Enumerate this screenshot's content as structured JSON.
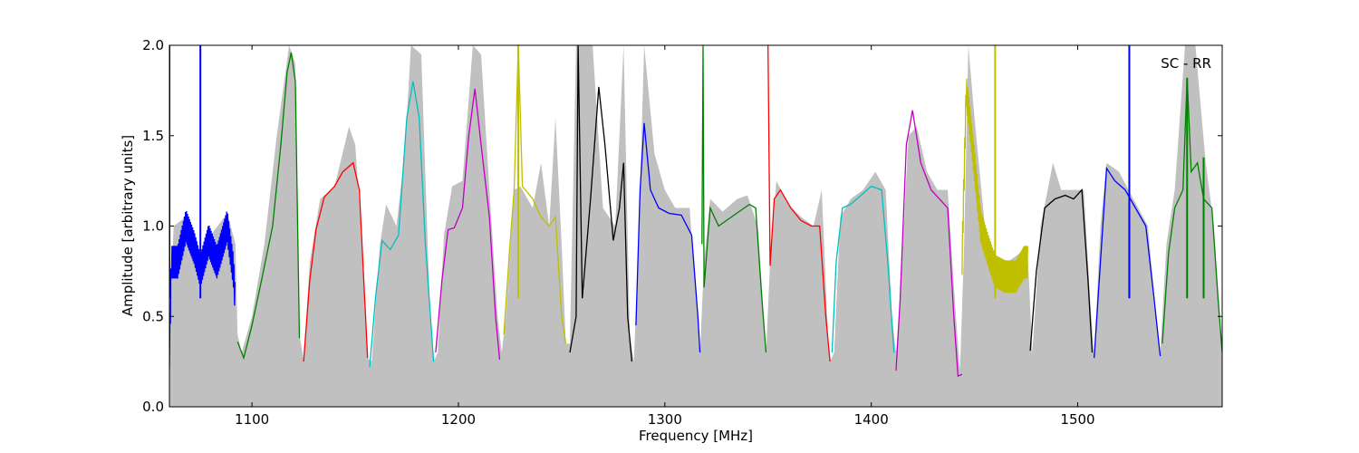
{
  "chart_data": {
    "type": "line",
    "xlabel": "Frequency [MHz]",
    "ylabel": "Amplitude [arbitrary units]",
    "annotation": "SC - RR",
    "annotation_position": "top-right",
    "xlim": [
      1060,
      1570
    ],
    "ylim": [
      0.0,
      2.0
    ],
    "xticks": [
      1100,
      1200,
      1300,
      1400,
      1500
    ],
    "xtick_labels": [
      "1100",
      "1200",
      "1300",
      "1400",
      "1500"
    ],
    "yticks": [
      0.0,
      0.5,
      1.0,
      1.5,
      2.0
    ],
    "ytick_labels": [
      "0.0",
      "0.5",
      "1.0",
      "1.5",
      "2.0"
    ],
    "grid": false,
    "envelope": {
      "color": "#c0c0c0",
      "description_free": true,
      "points": [
        [
          1060,
          0.3
        ],
        [
          1062,
          1.0
        ],
        [
          1068,
          1.05
        ],
        [
          1075,
          0.85
        ],
        [
          1080,
          0.95
        ],
        [
          1088,
          1.07
        ],
        [
          1092,
          0.9
        ],
        [
          1093,
          0.4
        ],
        [
          1095,
          0.3
        ],
        [
          1100,
          0.5
        ],
        [
          1106,
          0.9
        ],
        [
          1112,
          1.5
        ],
        [
          1118,
          2.0
        ],
        [
          1121,
          1.9
        ],
        [
          1123,
          0.4
        ],
        [
          1125,
          0.26
        ],
        [
          1128,
          0.8
        ],
        [
          1133,
          1.15
        ],
        [
          1140,
          1.22
        ],
        [
          1147,
          1.55
        ],
        [
          1150,
          1.45
        ],
        [
          1154,
          0.8
        ],
        [
          1156,
          0.27
        ],
        [
          1158,
          0.25
        ],
        [
          1162,
          0.9
        ],
        [
          1165,
          1.12
        ],
        [
          1170,
          1.0
        ],
        [
          1174,
          1.4
        ],
        [
          1177,
          2.0
        ],
        [
          1182,
          1.95
        ],
        [
          1186,
          0.6
        ],
        [
          1188,
          0.25
        ],
        [
          1190,
          0.3
        ],
        [
          1193,
          0.95
        ],
        [
          1197,
          1.22
        ],
        [
          1202,
          1.25
        ],
        [
          1207,
          2.0
        ],
        [
          1211,
          1.95
        ],
        [
          1215,
          1.2
        ],
        [
          1219,
          0.5
        ],
        [
          1221,
          0.3
        ],
        [
          1223,
          0.5
        ],
        [
          1227,
          1.2
        ],
        [
          1230,
          1.22
        ],
        [
          1236,
          1.1
        ],
        [
          1240,
          1.35
        ],
        [
          1244,
          1.0
        ],
        [
          1247,
          1.6
        ],
        [
          1250,
          0.9
        ],
        [
          1252,
          0.35
        ],
        [
          1254,
          0.35
        ],
        [
          1257,
          2.0
        ],
        [
          1261,
          2.0
        ],
        [
          1265,
          2.0
        ],
        [
          1270,
          1.1
        ],
        [
          1276,
          1.0
        ],
        [
          1280,
          2.0
        ],
        [
          1283,
          0.4
        ],
        [
          1285,
          0.25
        ],
        [
          1287,
          0.8
        ],
        [
          1290,
          2.0
        ],
        [
          1295,
          1.4
        ],
        [
          1300,
          1.2
        ],
        [
          1305,
          1.1
        ],
        [
          1312,
          1.1
        ],
        [
          1317,
          0.3
        ],
        [
          1319,
          0.8
        ],
        [
          1322,
          1.15
        ],
        [
          1328,
          1.08
        ],
        [
          1335,
          1.15
        ],
        [
          1340,
          1.17
        ],
        [
          1345,
          1.0
        ],
        [
          1349,
          0.3
        ],
        [
          1351,
          0.8
        ],
        [
          1354,
          1.25
        ],
        [
          1360,
          1.12
        ],
        [
          1366,
          1.05
        ],
        [
          1372,
          1.0
        ],
        [
          1376,
          1.2
        ],
        [
          1379,
          0.4
        ],
        [
          1380,
          0.25
        ],
        [
          1382,
          0.3
        ],
        [
          1385,
          1.05
        ],
        [
          1390,
          1.15
        ],
        [
          1396,
          1.2
        ],
        [
          1402,
          1.3
        ],
        [
          1407,
          1.2
        ],
        [
          1410,
          0.5
        ],
        [
          1412,
          0.3
        ],
        [
          1414,
          0.6
        ],
        [
          1418,
          1.5
        ],
        [
          1422,
          1.55
        ],
        [
          1427,
          1.3
        ],
        [
          1432,
          1.2
        ],
        [
          1437,
          1.2
        ],
        [
          1441,
          0.5
        ],
        [
          1443,
          0.2
        ],
        [
          1445,
          0.9
        ],
        [
          1447,
          2.0
        ],
        [
          1450,
          1.6
        ],
        [
          1455,
          1.0
        ],
        [
          1460,
          0.8
        ],
        [
          1466,
          0.8
        ],
        [
          1472,
          0.85
        ],
        [
          1476,
          0.8
        ],
        [
          1478,
          0.3
        ],
        [
          1482,
          1.0
        ],
        [
          1488,
          1.35
        ],
        [
          1492,
          1.2
        ],
        [
          1498,
          1.2
        ],
        [
          1503,
          1.2
        ],
        [
          1506,
          0.6
        ],
        [
          1508,
          0.28
        ],
        [
          1511,
          1.0
        ],
        [
          1514,
          1.35
        ],
        [
          1520,
          1.3
        ],
        [
          1527,
          1.15
        ],
        [
          1534,
          1.0
        ],
        [
          1538,
          0.5
        ],
        [
          1540,
          0.3
        ],
        [
          1543,
          0.9
        ],
        [
          1547,
          1.2
        ],
        [
          1552,
          2.0
        ],
        [
          1557,
          2.0
        ],
        [
          1562,
          1.35
        ],
        [
          1566,
          1.0
        ],
        [
          1570,
          0.3
        ]
      ]
    },
    "series": [
      {
        "color": "#0000ff",
        "noisy": true,
        "points": [
          [
            1060,
            0.3
          ],
          [
            1061,
            0.8
          ],
          [
            1064,
            0.8
          ],
          [
            1068,
            1.0
          ],
          [
            1072,
            0.88
          ],
          [
            1075,
            0.75
          ],
          [
            1079,
            0.92
          ],
          [
            1083,
            0.8
          ],
          [
            1088,
            1.0
          ],
          [
            1091,
            0.75
          ],
          [
            1092,
            0.55
          ]
        ],
        "spikes": [
          [
            1060,
            2.0
          ],
          [
            1075,
            2.0
          ]
        ]
      },
      {
        "color": "#008000",
        "points": [
          [
            1093,
            0.36
          ],
          [
            1096,
            0.27
          ],
          [
            1100,
            0.45
          ],
          [
            1105,
            0.72
          ],
          [
            1110,
            1.0
          ],
          [
            1114,
            1.45
          ],
          [
            1117,
            1.85
          ],
          [
            1119,
            1.96
          ],
          [
            1121,
            1.8
          ],
          [
            1123,
            0.38
          ]
        ]
      },
      {
        "color": "#ff0000",
        "points": [
          [
            1125,
            0.25
          ],
          [
            1128,
            0.7
          ],
          [
            1131,
            0.98
          ],
          [
            1135,
            1.16
          ],
          [
            1140,
            1.22
          ],
          [
            1144,
            1.3
          ],
          [
            1149,
            1.35
          ],
          [
            1152,
            1.2
          ],
          [
            1155,
            0.5
          ],
          [
            1156,
            0.27
          ]
        ]
      },
      {
        "color": "#00bfbf",
        "points": [
          [
            1157,
            0.22
          ],
          [
            1160,
            0.62
          ],
          [
            1163,
            0.92
          ],
          [
            1167,
            0.87
          ],
          [
            1171,
            0.95
          ],
          [
            1175,
            1.6
          ],
          [
            1178,
            1.8
          ],
          [
            1181,
            1.6
          ],
          [
            1184,
            0.9
          ],
          [
            1188,
            0.25
          ]
        ]
      },
      {
        "color": "#bf00bf",
        "points": [
          [
            1189,
            0.3
          ],
          [
            1192,
            0.7
          ],
          [
            1195,
            0.98
          ],
          [
            1198,
            0.99
          ],
          [
            1202,
            1.1
          ],
          [
            1205,
            1.5
          ],
          [
            1208,
            1.76
          ],
          [
            1211,
            1.45
          ],
          [
            1215,
            1.05
          ],
          [
            1218,
            0.5
          ],
          [
            1220,
            0.26
          ]
        ]
      },
      {
        "color": "#bfbf00",
        "points": [
          [
            1222,
            0.4
          ],
          [
            1225,
            0.9
          ],
          [
            1227,
            1.2
          ],
          [
            1229,
            2.0
          ],
          [
            1231,
            1.22
          ],
          [
            1236,
            1.15
          ],
          [
            1240,
            1.05
          ],
          [
            1244,
            1.0
          ],
          [
            1247,
            1.05
          ],
          [
            1250,
            0.5
          ],
          [
            1252,
            0.35
          ]
        ],
        "spikes": [
          [
            1229,
            2.0
          ]
        ]
      },
      {
        "color": "#000000",
        "points": [
          [
            1254,
            0.3
          ],
          [
            1257,
            0.5
          ],
          [
            1258,
            2.0
          ],
          [
            1260,
            0.6
          ],
          [
            1264,
            1.15
          ],
          [
            1268,
            1.77
          ],
          [
            1271,
            1.45
          ],
          [
            1275,
            0.92
          ],
          [
            1278,
            1.1
          ],
          [
            1280,
            1.35
          ],
          [
            1282,
            0.5
          ],
          [
            1284,
            0.25
          ]
        ]
      },
      {
        "color": "#0000ff",
        "points": [
          [
            1286,
            0.45
          ],
          [
            1288,
            1.2
          ],
          [
            1290,
            1.57
          ],
          [
            1293,
            1.2
          ],
          [
            1297,
            1.1
          ],
          [
            1302,
            1.07
          ],
          [
            1308,
            1.06
          ],
          [
            1313,
            0.95
          ],
          [
            1316,
            0.5
          ],
          [
            1317,
            0.3
          ]
        ],
        "spikes": []
      },
      {
        "color": "#008000",
        "points": [
          [
            1318,
            0.9
          ],
          [
            1318.5,
            2.0
          ],
          [
            1319,
            0.66
          ],
          [
            1322,
            1.1
          ],
          [
            1326,
            1.0
          ],
          [
            1331,
            1.04
          ],
          [
            1336,
            1.08
          ],
          [
            1341,
            1.12
          ],
          [
            1344,
            1.1
          ],
          [
            1347,
            0.6
          ],
          [
            1349,
            0.3
          ]
        ]
      },
      {
        "color": "#ff0000",
        "points": [
          [
            1350,
            2.0
          ],
          [
            1351,
            0.78
          ],
          [
            1353,
            1.15
          ],
          [
            1356,
            1.2
          ],
          [
            1361,
            1.1
          ],
          [
            1366,
            1.03
          ],
          [
            1371,
            1.0
          ],
          [
            1375,
            1.0
          ],
          [
            1378,
            0.5
          ],
          [
            1380,
            0.25
          ]
        ]
      },
      {
        "color": "#00bfbf",
        "points": [
          [
            1381,
            0.3
          ],
          [
            1383,
            0.8
          ],
          [
            1386,
            1.1
          ],
          [
            1390,
            1.12
          ],
          [
            1395,
            1.17
          ],
          [
            1400,
            1.22
          ],
          [
            1405,
            1.2
          ],
          [
            1408,
            0.8
          ],
          [
            1411,
            0.3
          ]
        ]
      },
      {
        "color": "#bf00bf",
        "points": [
          [
            1412,
            0.2
          ],
          [
            1414,
            0.6
          ],
          [
            1417,
            1.45
          ],
          [
            1420,
            1.64
          ],
          [
            1424,
            1.35
          ],
          [
            1429,
            1.2
          ],
          [
            1433,
            1.15
          ],
          [
            1437,
            1.1
          ],
          [
            1440,
            0.5
          ],
          [
            1442,
            0.17
          ],
          [
            1444,
            0.18
          ]
        ]
      },
      {
        "color": "#bfbf00",
        "noisy": true,
        "points": [
          [
            1444,
            0.82
          ],
          [
            1446,
            1.75
          ],
          [
            1449,
            1.45
          ],
          [
            1453,
            1.0
          ],
          [
            1457,
            0.85
          ],
          [
            1460,
            0.75
          ],
          [
            1465,
            0.72
          ],
          [
            1470,
            0.72
          ],
          [
            1474,
            0.8
          ],
          [
            1476,
            0.8
          ]
        ],
        "spikes": [
          [
            1460,
            2.0
          ]
        ]
      },
      {
        "color": "#000000",
        "points": [
          [
            1477,
            0.31
          ],
          [
            1480,
            0.75
          ],
          [
            1484,
            1.1
          ],
          [
            1489,
            1.15
          ],
          [
            1494,
            1.17
          ],
          [
            1498,
            1.15
          ],
          [
            1502,
            1.2
          ],
          [
            1505,
            0.7
          ],
          [
            1507,
            0.3
          ]
        ]
      },
      {
        "color": "#0000ff",
        "points": [
          [
            1508,
            0.27
          ],
          [
            1511,
            0.8
          ],
          [
            1514,
            1.32
          ],
          [
            1518,
            1.25
          ],
          [
            1523,
            1.2
          ],
          [
            1528,
            1.1
          ],
          [
            1533,
            1.0
          ],
          [
            1537,
            0.6
          ],
          [
            1540,
            0.28
          ]
        ],
        "spikes": [
          [
            1525,
            2.0
          ]
        ]
      },
      {
        "color": "#008000",
        "points": [
          [
            1541,
            0.35
          ],
          [
            1544,
            0.85
          ],
          [
            1547,
            1.1
          ],
          [
            1551,
            1.2
          ],
          [
            1553,
            1.82
          ],
          [
            1555,
            1.3
          ],
          [
            1558,
            1.35
          ],
          [
            1561,
            1.15
          ],
          [
            1565,
            1.1
          ],
          [
            1568,
            0.6
          ],
          [
            1570,
            0.3
          ]
        ],
        "spikes": [
          [
            1553,
            1.82
          ],
          [
            1561,
            1.38
          ]
        ]
      }
    ]
  }
}
